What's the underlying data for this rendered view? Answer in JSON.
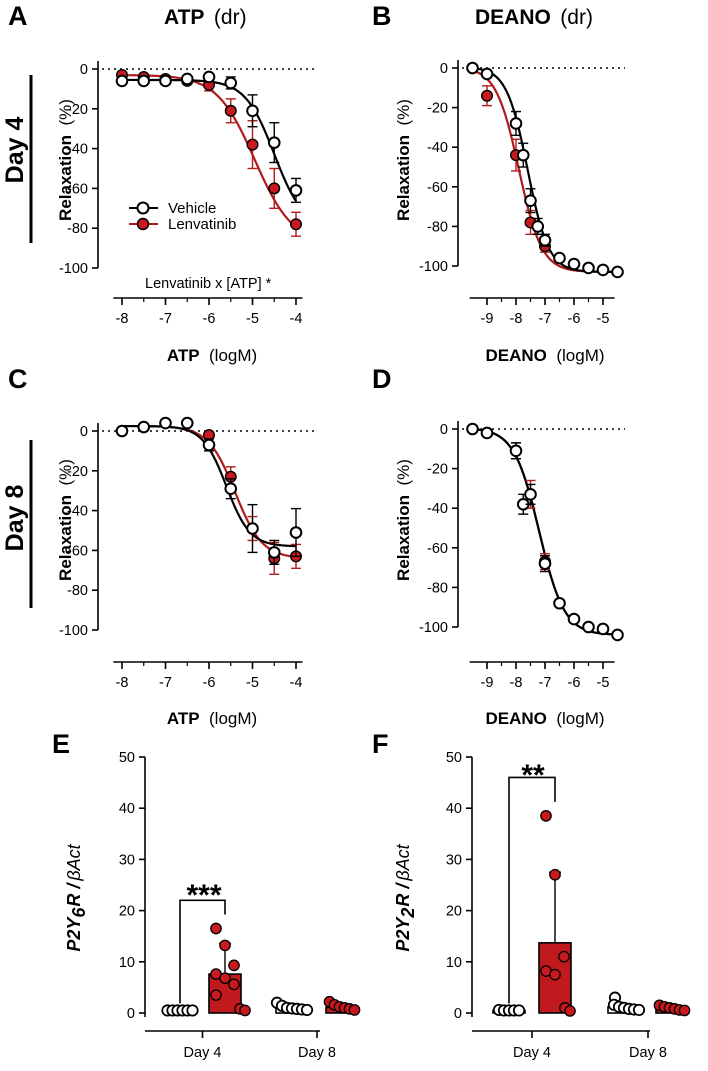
{
  "colors": {
    "vehicle": "#000000",
    "lenvatinib": "#b01b1b",
    "lenvatinib_fill": "#c8191e",
    "bar_fill": "#c0191e"
  },
  "day_labels": {
    "day4": "Day 4",
    "day8": "Day 8"
  },
  "panels": {
    "A": {
      "letter": "A",
      "title_bold": "ATP",
      "title_normal": "(dr)",
      "ylabel_bold": "Relaxation",
      "ylabel_normal": "(%)",
      "xlabel_bold": "ATP",
      "xlabel_normal": "(logM)",
      "annotation": "Lenvatinib x [ATP] *",
      "legend": [
        "Vehicle",
        "Lenvatinib"
      ]
    },
    "B": {
      "letter": "B",
      "title_bold": "DEANO",
      "title_normal": "(dr)",
      "ylabel_bold": "Relaxation",
      "ylabel_normal": "(%)",
      "xlabel_bold": "DEANO",
      "xlabel_normal": "(logM)"
    },
    "C": {
      "letter": "C",
      "ylabel_bold": "Relaxation",
      "ylabel_normal": "(%)",
      "xlabel_bold": "ATP",
      "xlabel_normal": "(logM)"
    },
    "D": {
      "letter": "D",
      "ylabel_bold": "Relaxation",
      "ylabel_normal": "(%)",
      "xlabel_bold": "DEANO",
      "xlabel_normal": "(logM)"
    },
    "E": {
      "letter": "E",
      "ylabel_gene": "P2Y",
      "ylabel_sub": "6",
      "ylabel_rest": "R /",
      "ylabel_norm": "βAct",
      "stars": "***"
    },
    "F": {
      "letter": "F",
      "ylabel_gene": "P2Y",
      "ylabel_sub": "2",
      "ylabel_rest": "R /",
      "ylabel_norm": "βAct",
      "stars": "**"
    }
  },
  "chart_data": [
    {
      "id": "A",
      "type": "line",
      "title": "ATP (dr)",
      "xlabel": "ATP (logM)",
      "ylabel": "Relaxation (%)",
      "xlim": [
        -8.2,
        -3.85
      ],
      "ylim": [
        -100,
        5
      ],
      "xticks": [
        -8,
        -7,
        -6,
        -5,
        -4
      ],
      "xtick_labels": [
        "-8",
        "-7",
        "-6",
        "-5",
        "-4"
      ],
      "yticks": [
        0,
        -20,
        -40,
        -60,
        -80,
        -100
      ],
      "ytick_labels": [
        "0",
        "-20",
        "-40",
        "-60",
        "-80",
        "-100"
      ],
      "series": [
        {
          "name": "Vehicle",
          "color": "#000000",
          "fill": "#ffffff",
          "x": [
            -8,
            -7.5,
            -7,
            -6.5,
            -6,
            -5.5,
            -5,
            -4.5,
            -4
          ],
          "y": [
            -6,
            -6,
            -6,
            -5,
            -4,
            -7,
            -21,
            -37,
            -61
          ],
          "err": [
            2,
            2,
            2,
            2,
            2,
            3,
            8,
            10,
            6
          ],
          "fit": {
            "top": -5.5,
            "bottom": -80,
            "logec50": -4.5,
            "hill": 1.3
          }
        },
        {
          "name": "Lenvatinib",
          "color": "#b01b1b",
          "fill": "#c8191e",
          "x": [
            -8,
            -7.5,
            -7,
            -6.5,
            -6,
            -5.5,
            -5,
            -4.5,
            -4
          ],
          "y": [
            -3,
            -4,
            -5,
            -6,
            -8,
            -21,
            -38,
            -60,
            -78
          ],
          "err": [
            2,
            2,
            2,
            2,
            3,
            6,
            12,
            10,
            6
          ],
          "fit": {
            "top": -3,
            "bottom": -88,
            "logec50": -4.95,
            "hill": 1.0
          }
        }
      ]
    },
    {
      "id": "B",
      "type": "line",
      "title": "DEANO (dr)",
      "xlabel": "DEANO (logM)",
      "ylabel": "Relaxation (%)",
      "xlim": [
        -9.6,
        -4.6
      ],
      "ylim": [
        -110,
        5
      ],
      "xticks": [
        -9,
        -8,
        -7,
        -6,
        -5
      ],
      "xtick_labels": [
        "-9",
        "-8",
        "-7",
        "-6",
        "-5"
      ],
      "yticks": [
        0,
        -20,
        -40,
        -60,
        -80,
        -100
      ],
      "ytick_labels": [
        "0",
        "-20",
        "-40",
        "-60",
        "-80",
        "-100"
      ],
      "series": [
        {
          "name": "Vehicle",
          "color": "#000000",
          "fill": "#ffffff",
          "x": [
            -9.5,
            -9,
            -8,
            -7.75,
            -7.5,
            -7.25,
            -7,
            -6.5,
            -6,
            -5.5,
            -5,
            -4.5
          ],
          "y": [
            0,
            -3,
            -28,
            -44,
            -67,
            -80,
            -87,
            -96,
            -99,
            -101,
            -102,
            -103
          ],
          "err": [
            1,
            2,
            6,
            6,
            6,
            4,
            3,
            2,
            1,
            1,
            1,
            1
          ],
          "fit": {
            "top": 0.5,
            "bottom": -103,
            "logec50": -7.6,
            "hill": 1.2
          }
        },
        {
          "name": "Lenvatinib",
          "color": "#b01b1b",
          "fill": "#c8191e",
          "x": [
            -9,
            -8,
            -7.5,
            -7
          ],
          "y": [
            -14,
            -44,
            -78,
            -90
          ],
          "err": [
            5,
            8,
            6,
            3
          ],
          "fit": {
            "top": 0.5,
            "bottom": -103,
            "logec50": -7.9,
            "hill": 1.1
          }
        }
      ]
    },
    {
      "id": "C",
      "type": "line",
      "xlabel": "ATP (logM)",
      "ylabel": "Relaxation (%)",
      "xlim": [
        -8.2,
        -3.85
      ],
      "ylim": [
        -100,
        5
      ],
      "xticks": [
        -8,
        -7,
        -6,
        -5,
        -4
      ],
      "xtick_labels": [
        "-8",
        "-7",
        "-6",
        "-5",
        "-4"
      ],
      "yticks": [
        0,
        -20,
        -40,
        -60,
        -80,
        -100
      ],
      "ytick_labels": [
        "0",
        "-20",
        "-40",
        "-60",
        "-80",
        "-100"
      ],
      "series": [
        {
          "name": "Vehicle",
          "color": "#000000",
          "fill": "#ffffff",
          "x": [
            -8,
            -7.5,
            -7,
            -6.5,
            -6,
            -5.5,
            -5,
            -4.5,
            -4
          ],
          "y": [
            0,
            2,
            4,
            4,
            -7,
            -29,
            -49,
            -61,
            -51
          ],
          "err": [
            1,
            2,
            2,
            2,
            3,
            5,
            12,
            6,
            12
          ],
          "fit": {
            "top": 2.5,
            "bottom": -58,
            "logec50": -5.6,
            "hill": 1.6
          }
        },
        {
          "name": "Lenvatinib",
          "color": "#b01b1b",
          "fill": "#c8191e",
          "x": [
            -6,
            -5.5,
            -5,
            -4.5,
            -4
          ],
          "y": [
            -2,
            -23,
            -49,
            -64,
            -63
          ],
          "err": [
            2,
            5,
            6,
            8,
            6
          ],
          "fit": {
            "top": 2.5,
            "bottom": -64,
            "logec50": -5.4,
            "hill": 1.4
          }
        }
      ]
    },
    {
      "id": "D",
      "type": "line",
      "xlabel": "DEANO (logM)",
      "ylabel": "Relaxation (%)",
      "xlim": [
        -9.6,
        -4.6
      ],
      "ylim": [
        -110,
        5
      ],
      "xticks": [
        -9,
        -8,
        -7,
        -6,
        -5
      ],
      "xtick_labels": [
        "-9",
        "-8",
        "-7",
        "-6",
        "-5"
      ],
      "yticks": [
        0,
        -20,
        -40,
        -60,
        -80,
        -100
      ],
      "ytick_labels": [
        "0",
        "-20",
        "-40",
        "-60",
        "-80",
        "-100"
      ],
      "series": [
        {
          "name": "Vehicle",
          "color": "#000000",
          "fill": "#ffffff",
          "x": [
            -9.5,
            -9,
            -8,
            -7.75,
            -7.5,
            -7,
            -6.5,
            -6,
            -5.5,
            -5,
            -4.5
          ],
          "y": [
            0,
            -2,
            -11,
            -38,
            -33,
            -68,
            -88,
            -96,
            -100,
            -101,
            -104
          ],
          "err": [
            1,
            2,
            4,
            5,
            5,
            4,
            2,
            1,
            1,
            1,
            1
          ],
          "fit": {
            "top": 0.5,
            "bottom": -104,
            "logec50": -7.2,
            "hill": 1.0
          }
        },
        {
          "name": "Lenvatinib",
          "color": "#b01b1b",
          "fill": "#c8191e",
          "x": [
            -9,
            -8,
            -7.5,
            -7
          ],
          "y": [
            -2,
            -11,
            -33,
            -67
          ],
          "err": [
            2,
            4,
            7,
            4
          ],
          "fit": {
            "top": 0.5,
            "bottom": -104,
            "logec50": -7.2,
            "hill": 1.0
          }
        }
      ]
    },
    {
      "id": "E",
      "type": "bar",
      "ylabel": "P2Y6R / βAct",
      "ylim": [
        0,
        50
      ],
      "yticks": [
        0,
        10,
        20,
        30,
        40,
        50
      ],
      "ytick_labels": [
        "0",
        "10",
        "20",
        "30",
        "40",
        "50"
      ],
      "categories": [
        "Day 4",
        "Day 8"
      ],
      "series": [
        {
          "name": "Vehicle",
          "means": [
            0.5,
            1.1
          ],
          "sd": [
            0.2,
            0.5
          ],
          "points": [
            [
              0.5,
              0.5,
              0.5,
              0.5,
              0.5,
              0.5
            ],
            [
              2.0,
              1.4,
              1.0,
              0.9,
              0.8,
              0.7,
              0.6
            ]
          ]
        },
        {
          "name": "Lenvatinib",
          "means": [
            7.6,
            1.1
          ],
          "sd": [
            6.0,
            0.6
          ],
          "points": [
            [
              16.5,
              13.2,
              9.3,
              7.6,
              6.8,
              5.6,
              3.5,
              0.8,
              0.5
            ],
            [
              2.2,
              1.6,
              1.2,
              1.0,
              0.8,
              0.6
            ]
          ]
        }
      ],
      "significance": {
        "label": "***",
        "between": [
          "Vehicle Day 4",
          "Lenvatinib Day 4"
        ]
      }
    },
    {
      "id": "F",
      "type": "bar",
      "ylabel": "P2Y2R / βAct",
      "ylim": [
        0,
        50
      ],
      "yticks": [
        0,
        10,
        20,
        30,
        40,
        50
      ],
      "ytick_labels": [
        "0",
        "10",
        "20",
        "30",
        "40",
        "50"
      ],
      "categories": [
        "Day 4",
        "Day 8"
      ],
      "series": [
        {
          "name": "Vehicle",
          "means": [
            0.5,
            1.2
          ],
          "sd": [
            0.2,
            0.6
          ],
          "points": [
            [
              0.6,
              0.5,
              0.5,
              0.5,
              0.5
            ],
            [
              3.0,
              1.6,
              1.2,
              1.0,
              0.8,
              0.7,
              0.6
            ]
          ]
        },
        {
          "name": "Lenvatinib",
          "means": [
            13.7,
            0.9
          ],
          "sd": [
            13.8,
            0.5
          ],
          "points": [
            [
              38.5,
              27.0,
              11.0,
              8.2,
              7.5,
              1.0,
              0.4
            ],
            [
              1.5,
              1.2,
              1.0,
              0.8,
              0.6,
              0.5
            ]
          ]
        }
      ],
      "significance": {
        "label": "**",
        "between": [
          "Vehicle Day 4",
          "Lenvatinib Day 4"
        ]
      }
    }
  ]
}
